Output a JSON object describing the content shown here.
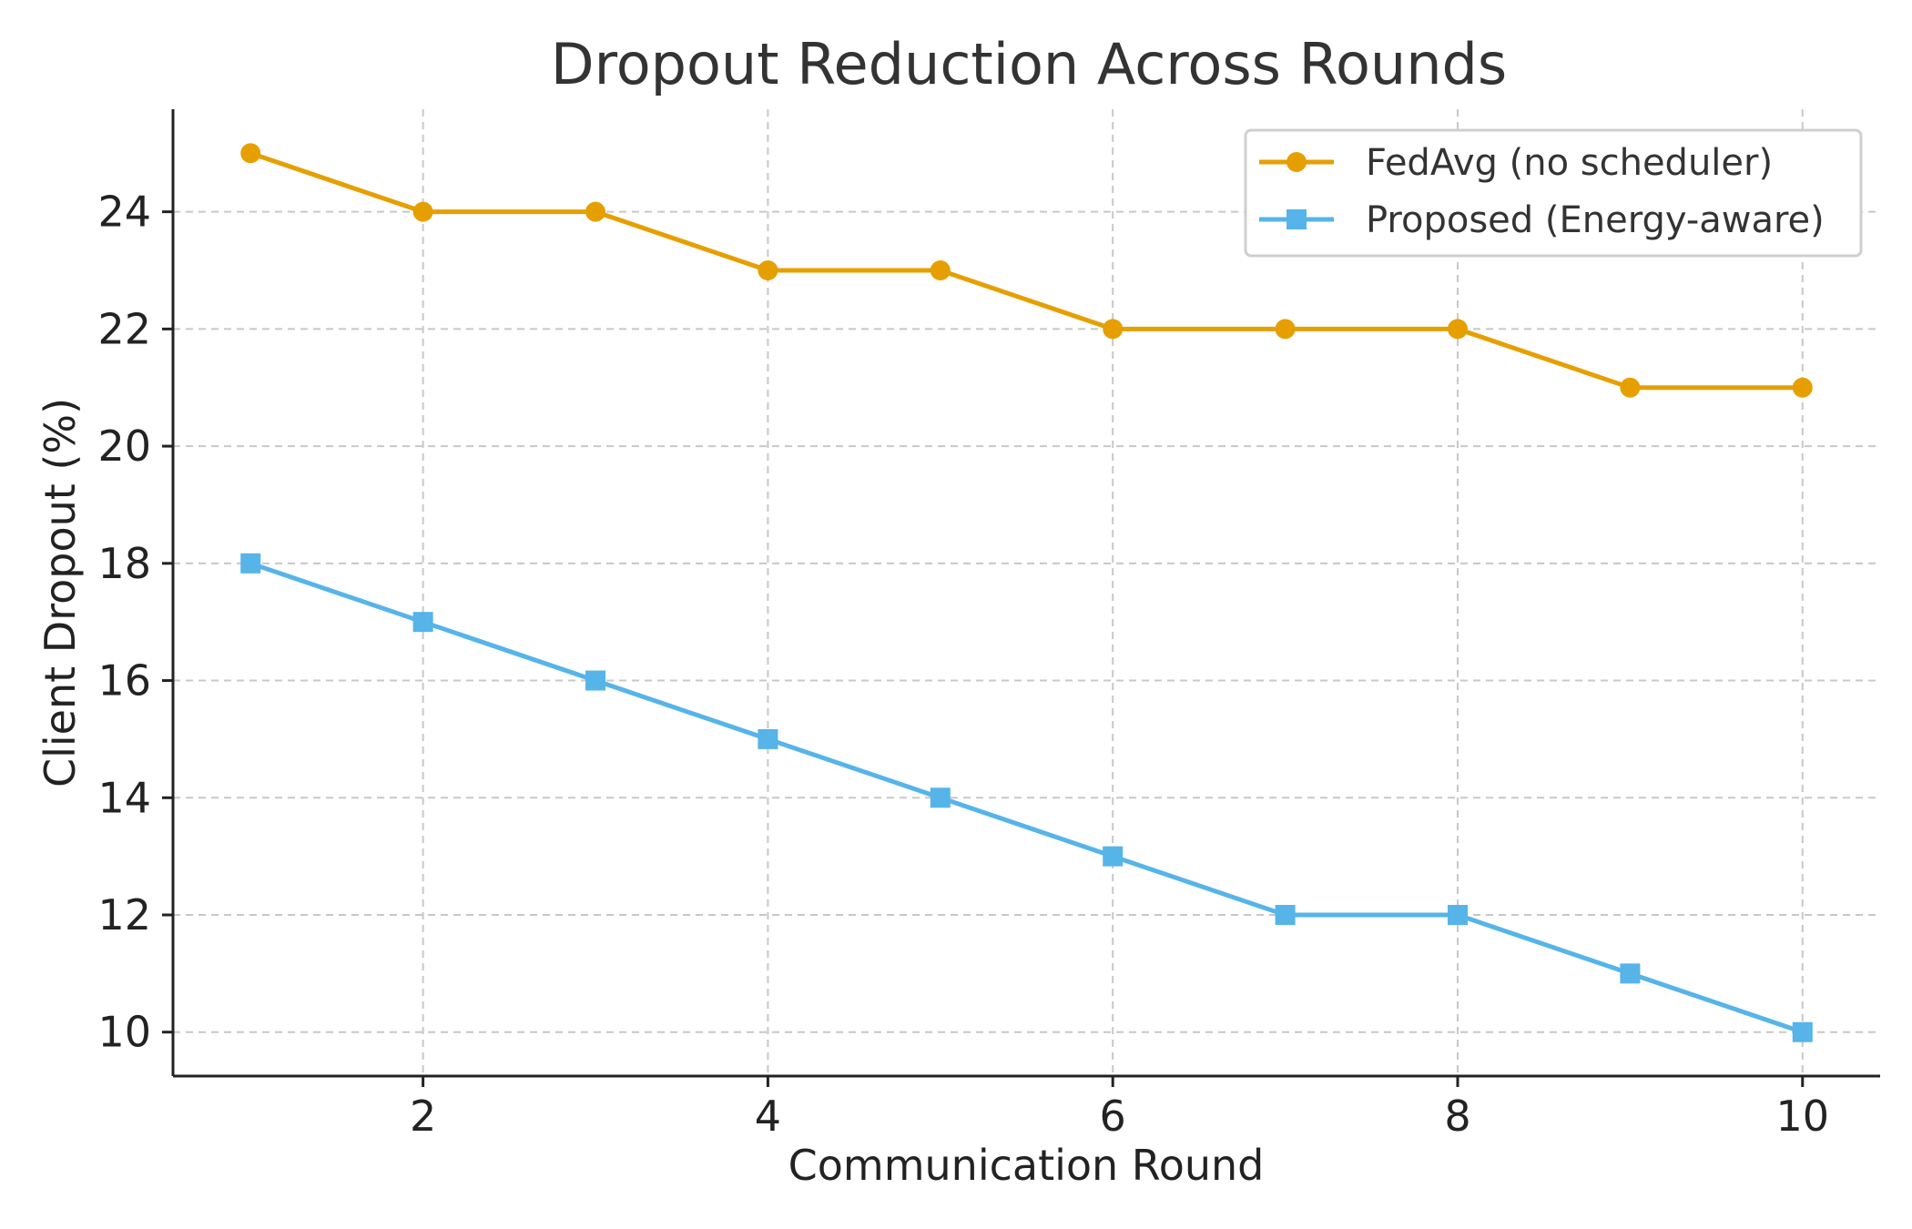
{
  "chart_data": {
    "type": "line",
    "title": "Dropout Reduction Across Rounds",
    "xlabel": "Communication Round",
    "ylabel": "Client Dropout (%)",
    "x": [
      1,
      2,
      3,
      4,
      5,
      6,
      7,
      8,
      9,
      10
    ],
    "xlim": [
      0.55,
      10.45
    ],
    "ylim": [
      9.25,
      25.75
    ],
    "xticks": [
      2,
      4,
      6,
      8,
      10
    ],
    "yticks": [
      10,
      12,
      14,
      16,
      18,
      20,
      22,
      24
    ],
    "grid": true,
    "legend_position": "top-right",
    "series": [
      {
        "name": "FedAvg (no scheduler)",
        "color": "#E69F00",
        "marker": "circle",
        "values": [
          25,
          24,
          24,
          23,
          23,
          22,
          22,
          22,
          21,
          21
        ]
      },
      {
        "name": "Proposed (Energy-aware)",
        "color": "#56B4E9",
        "marker": "square",
        "values": [
          18,
          17,
          16,
          15,
          14,
          13,
          12,
          12,
          11,
          10
        ]
      }
    ]
  }
}
